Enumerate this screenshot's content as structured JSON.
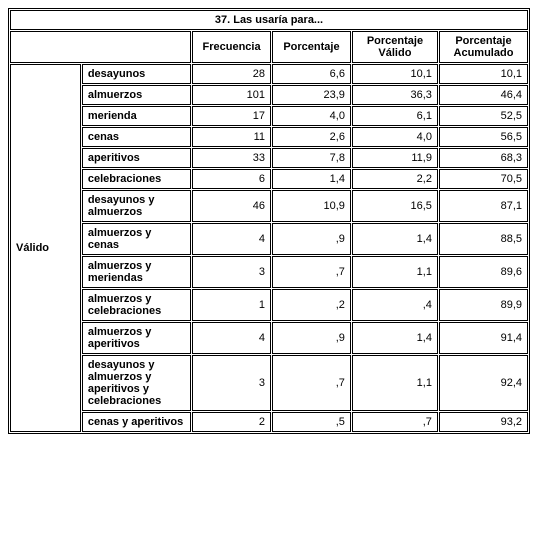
{
  "title": "37. Las usaría para...",
  "headers": {
    "frecuencia": "Frecuencia",
    "porcentaje": "Porcentaje",
    "porcentaje_valido": "Porcentaje Válido",
    "porcentaje_acumulado": "Porcentaje Acumulado"
  },
  "side_label": "Válido",
  "rows": [
    {
      "label": "desayunos",
      "freq": "28",
      "pct": "6,6",
      "pct_v": "10,1",
      "pct_a": "10,1"
    },
    {
      "label": "almuerzos",
      "freq": "101",
      "pct": "23,9",
      "pct_v": "36,3",
      "pct_a": "46,4"
    },
    {
      "label": "merienda",
      "freq": "17",
      "pct": "4,0",
      "pct_v": "6,1",
      "pct_a": "52,5"
    },
    {
      "label": "cenas",
      "freq": "11",
      "pct": "2,6",
      "pct_v": "4,0",
      "pct_a": "56,5"
    },
    {
      "label": "aperitivos",
      "freq": "33",
      "pct": "7,8",
      "pct_v": "11,9",
      "pct_a": "68,3"
    },
    {
      "label": "celebraciones",
      "freq": "6",
      "pct": "1,4",
      "pct_v": "2,2",
      "pct_a": "70,5"
    },
    {
      "label": "desayunos y almuerzos",
      "freq": "46",
      "pct": "10,9",
      "pct_v": "16,5",
      "pct_a": "87,1"
    },
    {
      "label": "almuerzos y cenas",
      "freq": "4",
      "pct": ",9",
      "pct_v": "1,4",
      "pct_a": "88,5"
    },
    {
      "label": "almuerzos y meriendas",
      "freq": "3",
      "pct": ",7",
      "pct_v": "1,1",
      "pct_a": "89,6"
    },
    {
      "label": "almuerzos y celebraciones",
      "freq": "1",
      "pct": ",2",
      "pct_v": ",4",
      "pct_a": "89,9"
    },
    {
      "label": "almuerzos y aperitivos",
      "freq": "4",
      "pct": ",9",
      "pct_v": "1,4",
      "pct_a": "91,4"
    },
    {
      "label": "desayunos y almuerzos y aperitivos y celebraciones",
      "freq": "3",
      "pct": ",7",
      "pct_v": "1,1",
      "pct_a": "92,4"
    },
    {
      "label": "cenas y aperitivos",
      "freq": "2",
      "pct": ",5",
      "pct_v": ",7",
      "pct_a": "93,2"
    }
  ],
  "col_widths": {
    "side": 70,
    "label": 108,
    "freq": 78,
    "pct": 78,
    "pct_v": 85,
    "pct_a": 88
  }
}
